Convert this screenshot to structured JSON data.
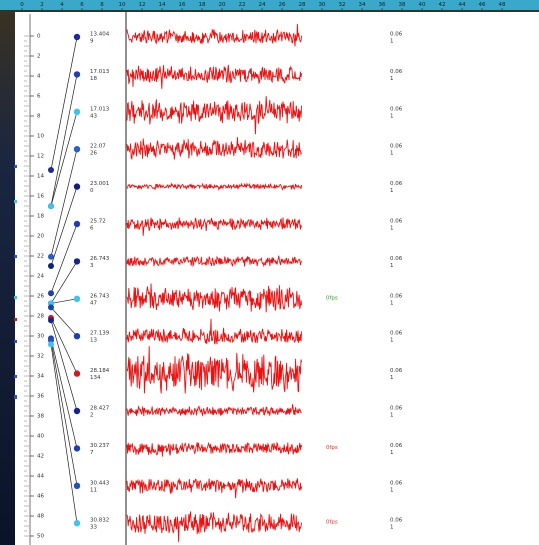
{
  "top_ruler": {
    "lim": [
      0,
      48
    ],
    "ticks": [
      0,
      2,
      4,
      6,
      8,
      10,
      12,
      14,
      16,
      18,
      20,
      22,
      24,
      26,
      28,
      30,
      32,
      34,
      36,
      38,
      40,
      42,
      44,
      46,
      48
    ]
  },
  "depth_ruler": {
    "lim": [
      0,
      50
    ],
    "ticks": [
      0,
      2,
      4,
      6,
      8,
      10,
      12,
      14,
      16,
      18,
      20,
      22,
      24,
      26,
      28,
      30,
      32,
      34,
      36,
      38,
      40,
      42,
      44,
      46,
      48,
      50
    ]
  },
  "channels": [
    {
      "depth": 13.404,
      "count": 9,
      "color": "#1a2a9a",
      "rate": 0.06,
      "n": 1
    },
    {
      "depth": 17.013,
      "count": 18,
      "color": "#1f3fb0",
      "rate": 0.06,
      "n": 1
    },
    {
      "depth": 17.013,
      "count": 43,
      "color": "#3cc4ee",
      "rate": 0.06,
      "n": 1
    },
    {
      "depth": 22.07,
      "count": 26,
      "color": "#2860c8",
      "rate": 0.06,
      "n": 1
    },
    {
      "depth": 23.001,
      "count": 0,
      "color": "#102080",
      "rate": 0.06,
      "n": 1
    },
    {
      "depth": 25.72,
      "count": 6,
      "color": "#1f3fb0",
      "rate": 0.06,
      "n": 1
    },
    {
      "depth": 26.743,
      "count": 3,
      "color": "#14248c",
      "rate": 0.06,
      "n": 1
    },
    {
      "depth": 26.743,
      "count": 47,
      "color": "#3cc4ee",
      "rate": 0.06,
      "n": 1,
      "fps": {
        "text": "0fps",
        "color": "#2aa02a"
      }
    },
    {
      "depth": 27.139,
      "count": 13,
      "color": "#1f3fb0",
      "rate": 0.06,
      "n": 1
    },
    {
      "depth": 28.184,
      "count": 134,
      "color": "#c8202a",
      "rate": 0.06,
      "n": 1
    },
    {
      "depth": 28.427,
      "count": 2,
      "color": "#14248c",
      "rate": 0.06,
      "n": 1
    },
    {
      "depth": 30.237,
      "count": 7,
      "color": "#1f3fb0",
      "rate": 0.06,
      "n": 1,
      "fps": {
        "text": "0fps",
        "color": "#e03030"
      }
    },
    {
      "depth": 30.443,
      "count": 11,
      "color": "#2050c0",
      "rate": 0.06,
      "n": 1
    },
    {
      "depth": 30.832,
      "count": 33,
      "color": "#3cc4ee",
      "rate": 0.06,
      "n": 1,
      "fps": {
        "text": "0fps",
        "color": "#e03030"
      }
    }
  ]
}
